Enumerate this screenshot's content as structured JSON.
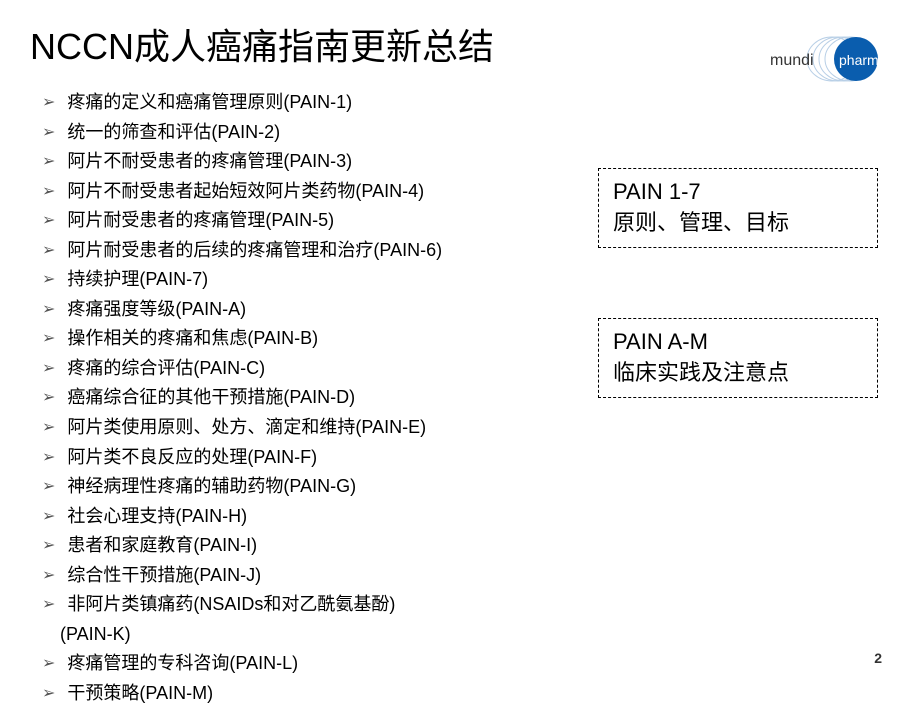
{
  "title": "NCCN成人癌痛指南更新总结",
  "logo": {
    "brand_text": "mundipharma",
    "circle_color": "#0a5dae",
    "ring_color": "#b8cfe6"
  },
  "list_items": [
    {
      "text": "疼痛的定义和癌痛管理原则(PAIN-1)",
      "indent": false
    },
    {
      "text": "统一的筛查和评估(PAIN-2)",
      "indent": false
    },
    {
      "text": "阿片不耐受患者的疼痛管理(PAIN-3)",
      "indent": false
    },
    {
      "text": "阿片不耐受患者起始短效阿片类药物(PAIN-4)",
      "indent": false
    },
    {
      "text": "阿片耐受患者的疼痛管理(PAIN-5)",
      "indent": false
    },
    {
      "text": "阿片耐受患者的后续的疼痛管理和治疗(PAIN-6)",
      "indent": false
    },
    {
      "text": "持续护理(PAIN-7)",
      "indent": false
    },
    {
      "text": "疼痛强度等级(PAIN-A)",
      "indent": false
    },
    {
      "text": "操作相关的疼痛和焦虑(PAIN-B)",
      "indent": false
    },
    {
      "text": "疼痛的综合评估(PAIN-C)",
      "indent": false
    },
    {
      "text": "癌痛综合征的其他干预措施(PAIN-D)",
      "indent": false
    },
    {
      "text": "阿片类使用原则、处方、滴定和维持(PAIN-E)",
      "indent": false
    },
    {
      "text": "阿片类不良反应的处理(PAIN-F)",
      "indent": false
    },
    {
      "text": "神经病理性疼痛的辅助药物(PAIN-G)",
      "indent": false
    },
    {
      "text": "社会心理支持(PAIN-H)",
      "indent": false
    },
    {
      "text": "患者和家庭教育(PAIN-I)",
      "indent": false
    },
    {
      "text": "综合性干预措施(PAIN-J)",
      "indent": false
    },
    {
      "text": "非阿片类镇痛药(NSAIDs和对乙酰氨基酚)",
      "indent": false
    },
    {
      "text": "(PAIN-K)",
      "indent": true,
      "no_arrow": true
    },
    {
      "text": "疼痛管理的专科咨询(PAIN-L)",
      "indent": false
    },
    {
      "text": "干预策略(PAIN-M)",
      "indent": false
    }
  ],
  "box1": {
    "line1": "PAIN 1-7",
    "line2": "原则、管理、目标"
  },
  "box2": {
    "line1": "PAIN A-M",
    "line2": "临床实践及注意点"
  },
  "page_number": "2",
  "colors": {
    "background": "#ffffff",
    "text": "#000000",
    "arrow": "#555555",
    "box_border": "#000000"
  }
}
